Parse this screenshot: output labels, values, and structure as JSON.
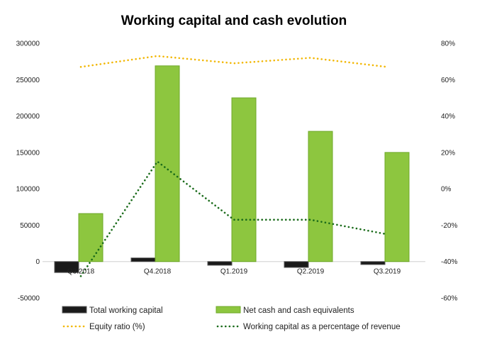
{
  "chart_data": {
    "type": "bar",
    "title": "Working capital and cash evolution",
    "categories": [
      "Q3.2018",
      "Q4.2018",
      "Q1.2019",
      "Q2.2019",
      "Q3.2019"
    ],
    "series": [
      {
        "name": "Total working capital",
        "kind": "bar",
        "axis": "left",
        "color": "#1a1a1a",
        "values": [
          -15000,
          5000,
          -5000,
          -8000,
          -4000
        ]
      },
      {
        "name": "Net cash and cash equivalents",
        "kind": "bar",
        "axis": "left",
        "color": "#8dc63f",
        "values": [
          66000,
          269000,
          225000,
          179000,
          150000
        ]
      },
      {
        "name": "Equity ratio (%)",
        "kind": "dotted-line",
        "axis": "right",
        "color": "#f2b705",
        "values": [
          67,
          73,
          69,
          72,
          67
        ]
      },
      {
        "name": "Working capital as a percentage of revenue",
        "kind": "dotted-line",
        "axis": "right",
        "color": "#1a6b1a",
        "values": [
          -48,
          15,
          -17,
          -17,
          -25
        ]
      }
    ],
    "y_left": {
      "min": -50000,
      "max": 300000,
      "ticks": [
        "-50000",
        "0",
        "50000",
        "100000",
        "150000",
        "200000",
        "250000",
        "300000"
      ]
    },
    "y_right": {
      "min": -60,
      "max": 80,
      "ticks": [
        "-60%",
        "-40%",
        "-20%",
        "0%",
        "20%",
        "40%",
        "60%",
        "80%"
      ]
    },
    "grid": false,
    "legend_position": "bottom"
  }
}
